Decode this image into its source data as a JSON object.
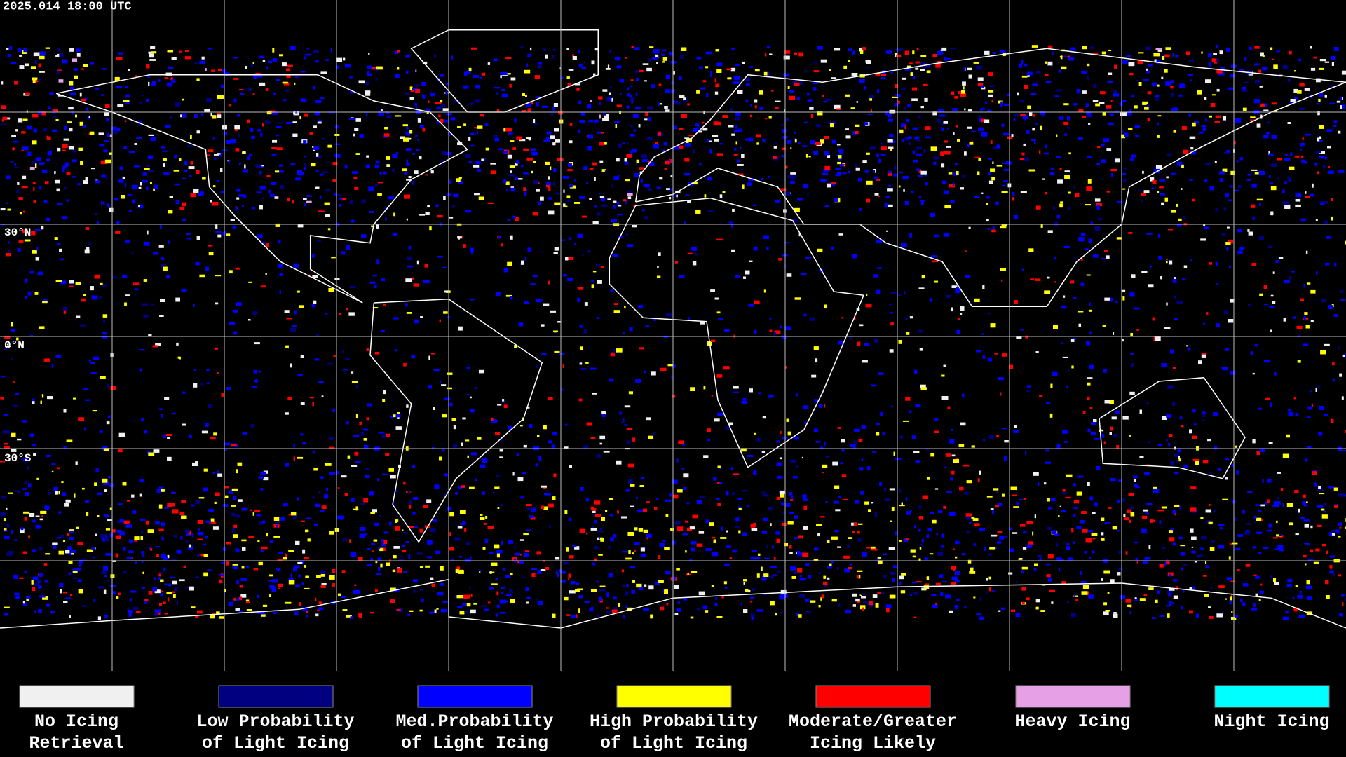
{
  "header": {
    "timestamp": "2025.014 18:00 UTC"
  },
  "map": {
    "latitude_labels": [
      "30°N",
      "0°N",
      "30°S"
    ]
  },
  "legend": [
    {
      "color": "#f0f0f0",
      "lines": [
        "No Icing",
        "Retrieval"
      ]
    },
    {
      "color": "#000080",
      "lines": [
        "Low Probability",
        "of Light Icing"
      ]
    },
    {
      "color": "#0000ff",
      "lines": [
        "Med.Probability",
        "of Light Icing"
      ]
    },
    {
      "color": "#ffff00",
      "lines": [
        "High Probability",
        "of Light Icing"
      ]
    },
    {
      "color": "#ff0000",
      "lines": [
        "Moderate/Greater",
        "Icing Likely"
      ]
    },
    {
      "color": "#e6a0e6",
      "lines": [
        "Heavy Icing"
      ]
    },
    {
      "color": "#00ffff",
      "lines": [
        "Night Icing"
      ]
    }
  ]
}
